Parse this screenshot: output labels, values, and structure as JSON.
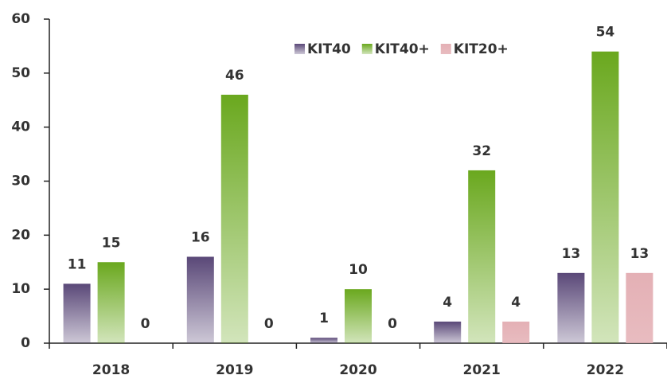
{
  "chart_data": {
    "type": "bar",
    "categories": [
      "2018",
      "2019",
      "2020",
      "2021",
      "2022"
    ],
    "series": [
      {
        "name": "KIT40",
        "color": "#5a4878",
        "values": [
          11,
          16,
          1,
          4,
          13
        ]
      },
      {
        "name": "KIT40+",
        "color": "#6aa81e",
        "values": [
          15,
          46,
          10,
          32,
          54
        ]
      },
      {
        "name": "KIT20+",
        "color": "#e4b0b5",
        "values": [
          0,
          0,
          0,
          4,
          13
        ]
      }
    ],
    "ylim": [
      0,
      60
    ],
    "yticks": [
      0,
      10,
      20,
      30,
      40,
      50,
      60
    ],
    "grid": false,
    "legend": "top"
  }
}
